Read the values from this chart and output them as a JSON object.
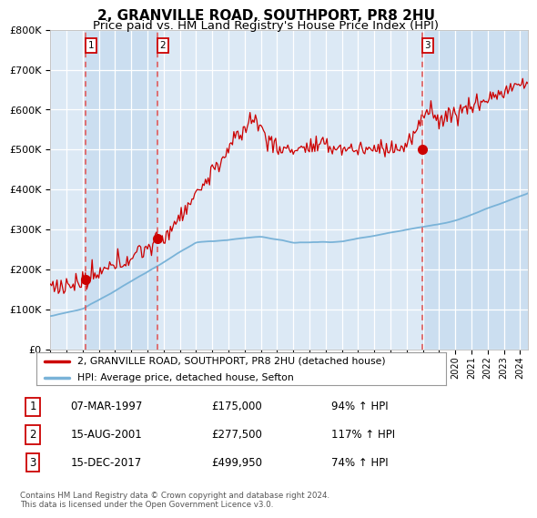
{
  "title": "2, GRANVILLE ROAD, SOUTHPORT, PR8 2HU",
  "subtitle": "Price paid vs. HM Land Registry's House Price Index (HPI)",
  "ylim": [
    0,
    800000
  ],
  "yticks": [
    0,
    100000,
    200000,
    300000,
    400000,
    500000,
    600000,
    700000,
    800000
  ],
  "ytick_labels": [
    "£0",
    "£100K",
    "£200K",
    "£300K",
    "£400K",
    "£500K",
    "£600K",
    "£700K",
    "£800K"
  ],
  "xlim_start": 1995.0,
  "xlim_end": 2024.5,
  "plot_bg_color": "#dce9f5",
  "sale_color": "#cc0000",
  "hpi_color": "#7ab3d8",
  "vline_color": "#e05050",
  "shade_color": "#c8ddf0",
  "sale_dates": [
    1997.18,
    2001.62,
    2017.96
  ],
  "sale_prices": [
    175000,
    277500,
    499950
  ],
  "sale_labels": [
    "1",
    "2",
    "3"
  ],
  "legend_sale_label": "2, GRANVILLE ROAD, SOUTHPORT, PR8 2HU (detached house)",
  "legend_hpi_label": "HPI: Average price, detached house, Sefton",
  "table_rows": [
    [
      "1",
      "07-MAR-1997",
      "£175,000",
      "94% ↑ HPI"
    ],
    [
      "2",
      "15-AUG-2001",
      "£277,500",
      "117% ↑ HPI"
    ],
    [
      "3",
      "15-DEC-2017",
      "£499,950",
      "74% ↑ HPI"
    ]
  ],
  "footer": "Contains HM Land Registry data © Crown copyright and database right 2024.\nThis data is licensed under the Open Government Licence v3.0.",
  "title_fontsize": 11,
  "subtitle_fontsize": 9.5
}
